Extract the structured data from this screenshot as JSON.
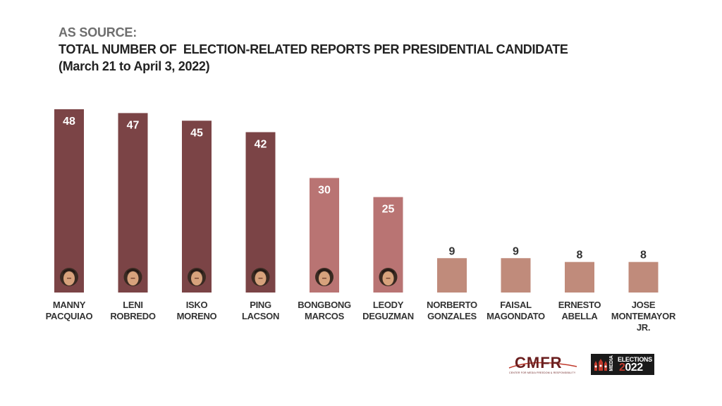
{
  "header": {
    "source_label": "AS SOURCE:",
    "title": "TOTAL NUMBER OF  ELECTION-RELATED REPORTS PER PRESIDENTIAL CANDIDATE",
    "subtitle": "(March 21 to April 3, 2022)"
  },
  "chart_data": {
    "type": "bar",
    "title": "TOTAL NUMBER OF  ELECTION-RELATED REPORTS PER PRESIDENTIAL CANDIDATE",
    "subtitle": "(March 21 to April 3, 2022)",
    "categories": [
      [
        "MANNY",
        "PACQUIAO"
      ],
      [
        "LENI",
        "ROBREDO"
      ],
      [
        "ISKO",
        "MORENO"
      ],
      [
        "PING",
        "LACSON"
      ],
      [
        "BONGBONG",
        "MARCOS"
      ],
      [
        "LEODY",
        "DEGUZMAN"
      ],
      [
        "NORBERTO",
        "GONZALES"
      ],
      [
        "FAISAL",
        "MAGONDATO"
      ],
      [
        "ERNESTO",
        "ABELLA"
      ],
      [
        "JOSE",
        "MONTEMAYOR",
        "JR."
      ]
    ],
    "values": [
      48,
      47,
      45,
      42,
      30,
      25,
      9,
      9,
      8,
      8
    ],
    "colors": [
      "#7b4446",
      "#7b4446",
      "#7b4446",
      "#7b4446",
      "#b97473",
      "#b97473",
      "#c08b7b",
      "#c08b7b",
      "#c08b7b",
      "#c08b7b"
    ],
    "label_colors": [
      "#ffffff",
      "#ffffff",
      "#ffffff",
      "#ffffff",
      "#ffffff",
      "#ffffff",
      "#333333",
      "#333333",
      "#333333",
      "#333333"
    ],
    "has_avatar": [
      true,
      true,
      true,
      true,
      true,
      true,
      false,
      false,
      false,
      false
    ],
    "ylim": [
      0,
      48
    ],
    "grid": false,
    "legend": "none"
  },
  "logos": {
    "cmfr_text": "CMFR",
    "cmfr_sub": "CENTER FOR MEDIA FREEDOM & RESPONSIBILITY",
    "media_text": "MEDIA",
    "elections_text": "ELECTIONS",
    "year_prefix": "2",
    "year_rest": "022"
  }
}
